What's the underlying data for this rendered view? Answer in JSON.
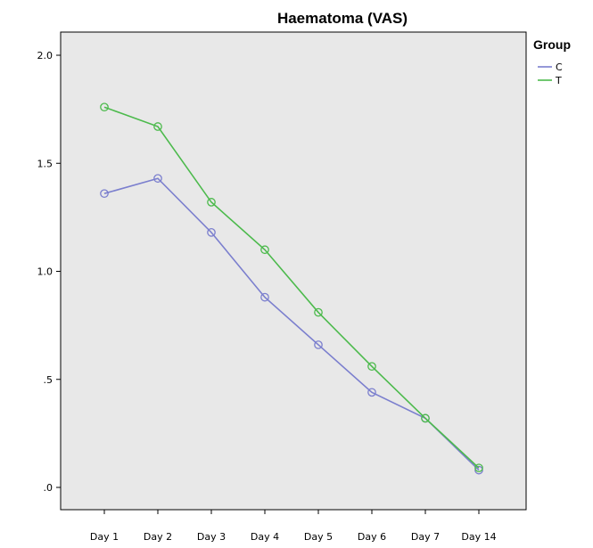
{
  "chart_data": {
    "type": "line",
    "title": "Haematoma (VAS)",
    "xlabel": "",
    "ylabel": "",
    "categories": [
      "Day 1",
      "Day 2",
      "Day 3",
      "Day 4",
      "Day 5",
      "Day 6",
      "Day 7",
      "Day 14"
    ],
    "ylim": [
      0,
      2.0
    ],
    "yticks": [
      0,
      0.5,
      1.0,
      1.5,
      2.0
    ],
    "ytick_labels": [
      ".0",
      ".5",
      "1.0",
      "1.5",
      "2.0"
    ],
    "grid": false,
    "legend": {
      "title": "Group",
      "placement": "top-right outside"
    },
    "series": [
      {
        "name": "C",
        "color": "#7b7fce",
        "marker": "open-circle",
        "values": [
          1.36,
          1.43,
          1.18,
          0.88,
          0.66,
          0.44,
          0.32,
          0.08
        ]
      },
      {
        "name": "T",
        "color": "#4cba4c",
        "marker": "open-circle",
        "values": [
          1.76,
          1.67,
          1.32,
          1.1,
          0.81,
          0.56,
          0.32,
          0.09
        ]
      }
    ]
  },
  "colors": {
    "plot_background": "#e8e8e8",
    "axis": "#000000"
  }
}
